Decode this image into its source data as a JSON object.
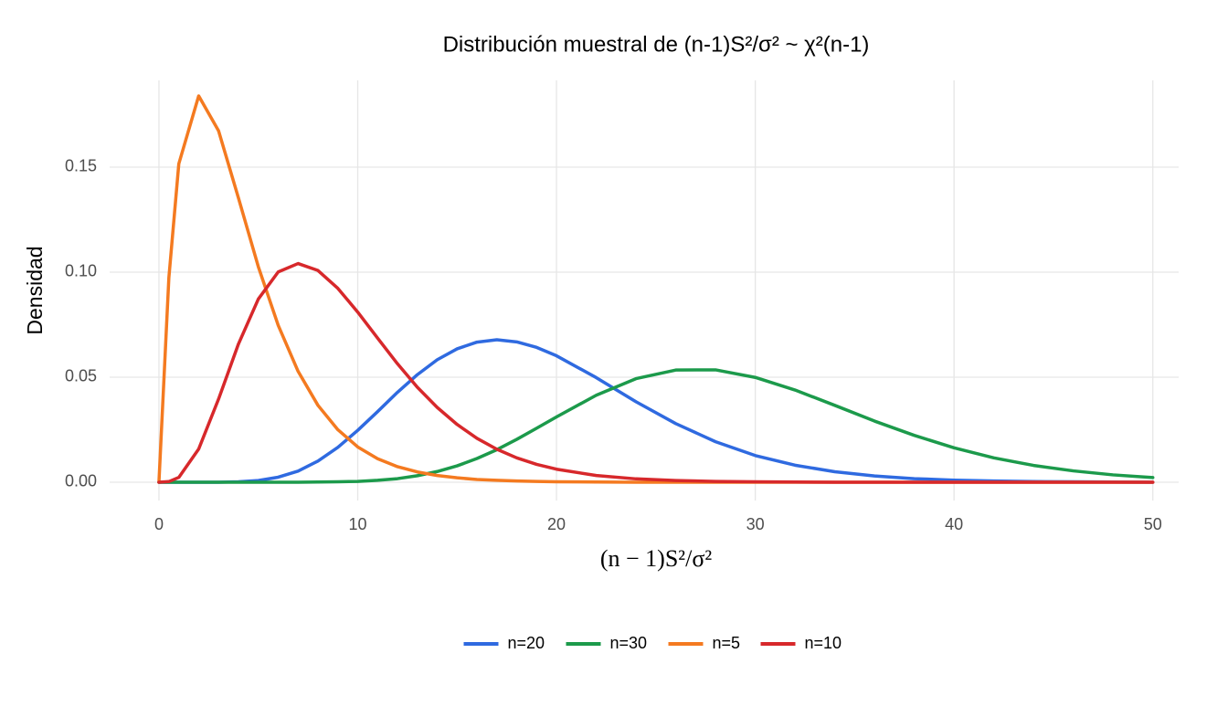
{
  "chart_data": {
    "type": "line",
    "title": "Distribución muestral de (n-1)S²/σ²  ~ χ²(n-1)",
    "x_label": "(n − 1)S²/σ²",
    "y_label": "Densidad",
    "x": [
      0,
      0.5,
      1,
      2,
      3,
      4,
      5,
      6,
      7,
      8,
      9,
      10,
      11,
      12,
      13,
      14,
      15,
      16,
      17,
      18,
      19,
      20,
      22,
      24,
      26,
      28,
      30,
      32,
      34,
      36,
      38,
      40,
      42,
      44,
      46,
      48,
      50
    ],
    "series": [
      {
        "name": "n=20",
        "color": "#2f6ae0",
        "values": [
          0,
          0,
          0,
          0,
          0,
          0.0002,
          0.0008,
          0.0024,
          0.0053,
          0.0101,
          0.0166,
          0.0247,
          0.0336,
          0.0428,
          0.0512,
          0.0583,
          0.0635,
          0.0667,
          0.0678,
          0.0668,
          0.0642,
          0.0602,
          0.0498,
          0.0383,
          0.0279,
          0.0193,
          0.0127,
          0.0081,
          0.005,
          0.003,
          0.0017,
          0.001,
          0.0006,
          0.0003,
          0.0002,
          0.0001,
          0
        ]
      },
      {
        "name": "n=30",
        "color": "#1c9a4b",
        "values": [
          0,
          0,
          0,
          0,
          0,
          0,
          0,
          0,
          0,
          0.0001,
          0.0002,
          0.0004,
          0.0009,
          0.0017,
          0.0031,
          0.0051,
          0.0078,
          0.0113,
          0.0155,
          0.0204,
          0.0257,
          0.0311,
          0.0414,
          0.0493,
          0.0534,
          0.0535,
          0.0499,
          0.0439,
          0.0366,
          0.0291,
          0.0223,
          0.0164,
          0.0116,
          0.008,
          0.0054,
          0.0035,
          0.0022
        ]
      },
      {
        "name": "n=5",
        "color": "#f47a20",
        "values": [
          0,
          0.0974,
          0.1516,
          0.1839,
          0.1673,
          0.1353,
          0.1026,
          0.0747,
          0.0528,
          0.0366,
          0.025,
          0.0168,
          0.0112,
          0.0074,
          0.0049,
          0.0032,
          0.0021,
          0.0013,
          0.0009,
          0.0006,
          0.0004,
          0.0002,
          0.0001,
          0,
          0,
          0,
          0,
          0,
          0,
          0,
          0,
          0,
          0,
          0,
          0,
          0,
          0
        ]
      },
      {
        "name": "n=10",
        "color": "#d7282b",
        "values": [
          0,
          0.0003,
          0.0023,
          0.0158,
          0.0396,
          0.0658,
          0.0872,
          0.1001,
          0.1041,
          0.1008,
          0.0923,
          0.081,
          0.0686,
          0.0564,
          0.0452,
          0.0356,
          0.0275,
          0.0209,
          0.0157,
          0.0116,
          0.0085,
          0.0062,
          0.0032,
          0.0016,
          0.0008,
          0.0004,
          0.0002,
          0.0001,
          0,
          0,
          0,
          0,
          0,
          0,
          0,
          0,
          0
        ]
      }
    ],
    "xlim": [
      -2.48,
      51.3
    ],
    "ylim": [
      -0.0087,
      0.1913
    ],
    "xticks": [
      0,
      10,
      20,
      30,
      40,
      50
    ],
    "yticks": [
      {
        "value": 0,
        "label": "0.00"
      },
      0.05,
      {
        "value": 0.1,
        "label": "0.10"
      },
      0.15
    ],
    "grid": true,
    "legend": "bottom"
  }
}
